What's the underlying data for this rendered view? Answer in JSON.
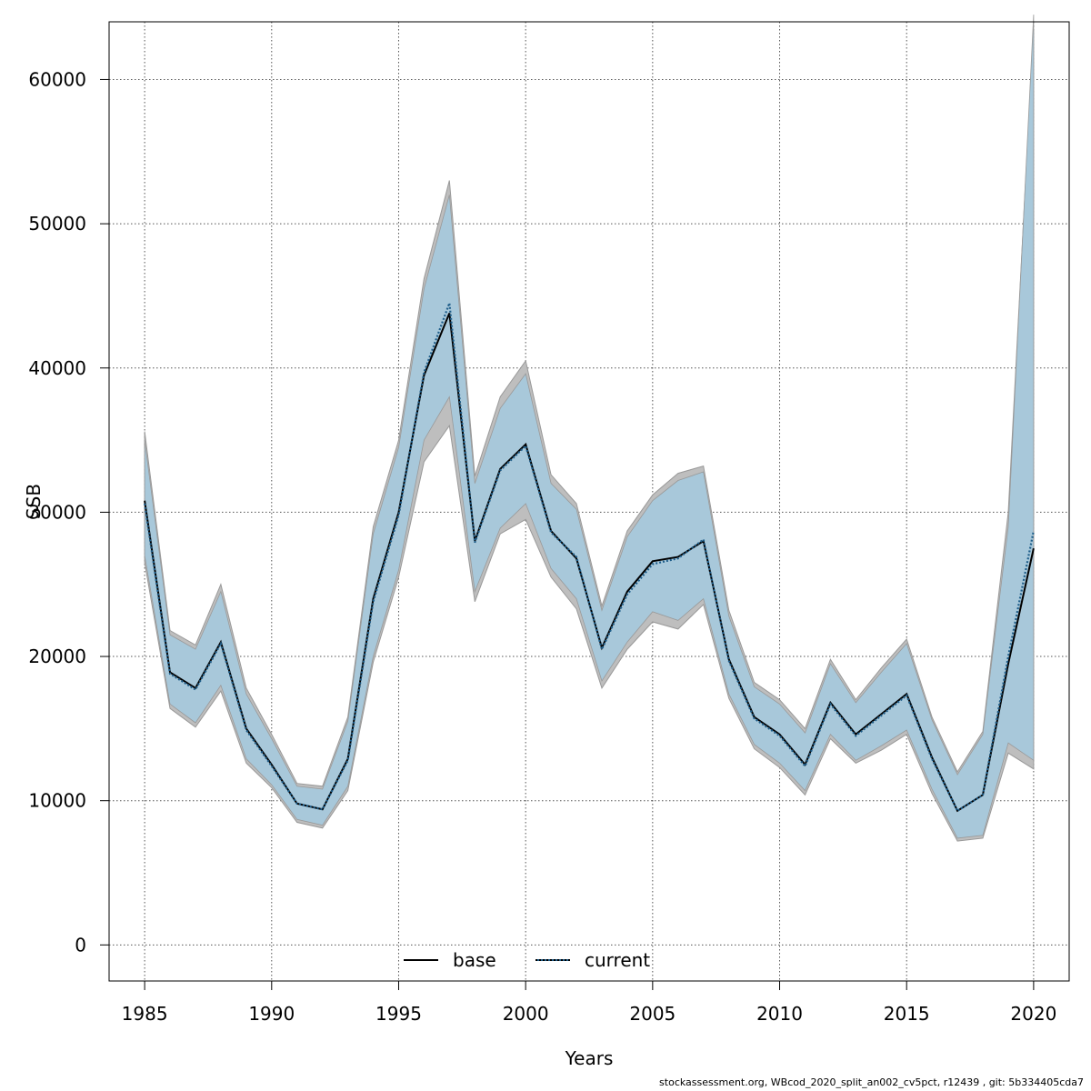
{
  "footer": "stockassessment.org, WBcod_2020_split_an002_cv5pct, r12439 , git: 5b334405cda7",
  "chart_data": {
    "type": "line",
    "title": "",
    "xlabel": "Years",
    "ylabel": "SSB",
    "xlim": [
      1983.6,
      2021.4
    ],
    "ylim": [
      -2500,
      64000
    ],
    "xticks": [
      1985,
      1990,
      1995,
      2000,
      2005,
      2010,
      2015,
      2020
    ],
    "yticks": [
      0,
      10000,
      20000,
      30000,
      40000,
      50000,
      60000
    ],
    "grid": true,
    "legend_position": "bottom-center",
    "colors": {
      "base_band": "#bebebe",
      "current_band": "#a6c8db",
      "band_edge": "#999999",
      "base_line": "#000000",
      "current_line": "#1f5e8a"
    },
    "x": [
      1985,
      1986,
      1987,
      1988,
      1989,
      1990,
      1991,
      1992,
      1993,
      1994,
      1995,
      1996,
      1997,
      1998,
      1999,
      2000,
      2001,
      2002,
      2003,
      2004,
      2005,
      2006,
      2007,
      2008,
      2009,
      2010,
      2011,
      2012,
      2013,
      2014,
      2015,
      2016,
      2017,
      2018,
      2019,
      2020
    ],
    "series": [
      {
        "name": "base",
        "line_style": "solid",
        "values": [
          30800,
          18900,
          17800,
          21000,
          15000,
          12500,
          9800,
          9400,
          12900,
          24000,
          30000,
          39500,
          43800,
          28000,
          33000,
          34700,
          28700,
          26800,
          20600,
          24500,
          26600,
          26900,
          28000,
          19800,
          15800,
          14600,
          12500,
          16800,
          14600,
          16000,
          17400,
          13000,
          9300,
          10400,
          19500,
          27500
        ],
        "lower": [
          26500,
          16400,
          15100,
          17600,
          12600,
          10900,
          8500,
          8100,
          10700,
          19600,
          25500,
          33500,
          36000,
          23800,
          28500,
          29500,
          25500,
          23300,
          17800,
          20500,
          22400,
          21900,
          23600,
          17100,
          13600,
          12300,
          10400,
          14300,
          12600,
          13500,
          14600,
          10500,
          7200,
          7400,
          13300,
          12200
        ],
        "upper": [
          35600,
          21800,
          20800,
          25000,
          17800,
          14600,
          11200,
          11000,
          15800,
          29000,
          35000,
          46200,
          53000,
          32500,
          38000,
          40500,
          32600,
          30600,
          23500,
          28700,
          31200,
          32700,
          33200,
          23200,
          18200,
          17000,
          15000,
          19800,
          17000,
          19200,
          21200,
          15800,
          12000,
          14800,
          30000,
          63500
        ]
      },
      {
        "name": "current",
        "line_style": "dotted",
        "values": [
          30600,
          18800,
          17700,
          20900,
          14900,
          12400,
          9800,
          9400,
          12800,
          23800,
          29800,
          39700,
          44500,
          27900,
          32900,
          34600,
          28600,
          26900,
          20500,
          24300,
          26400,
          26800,
          28100,
          19700,
          15700,
          14500,
          12400,
          16700,
          14500,
          15900,
          17300,
          12900,
          9300,
          10400,
          20000,
          28700
        ],
        "lower": [
          27000,
          16700,
          15400,
          18000,
          12900,
          11100,
          8700,
          8300,
          11000,
          20000,
          26000,
          35000,
          38000,
          24500,
          28900,
          30600,
          26100,
          24000,
          18300,
          21000,
          23100,
          22500,
          24000,
          17400,
          13900,
          12600,
          10700,
          14600,
          12800,
          13800,
          14900,
          10800,
          7400,
          7600,
          14000,
          12800
        ],
        "upper": [
          35000,
          21500,
          20500,
          24500,
          17400,
          14300,
          11000,
          10800,
          15500,
          28500,
          34500,
          45500,
          52000,
          32000,
          37200,
          39600,
          32000,
          30200,
          23200,
          28300,
          30800,
          32200,
          32800,
          22800,
          17900,
          16700,
          14700,
          19500,
          16800,
          18900,
          20900,
          15600,
          11800,
          14600,
          29000,
          64500
        ]
      }
    ]
  }
}
